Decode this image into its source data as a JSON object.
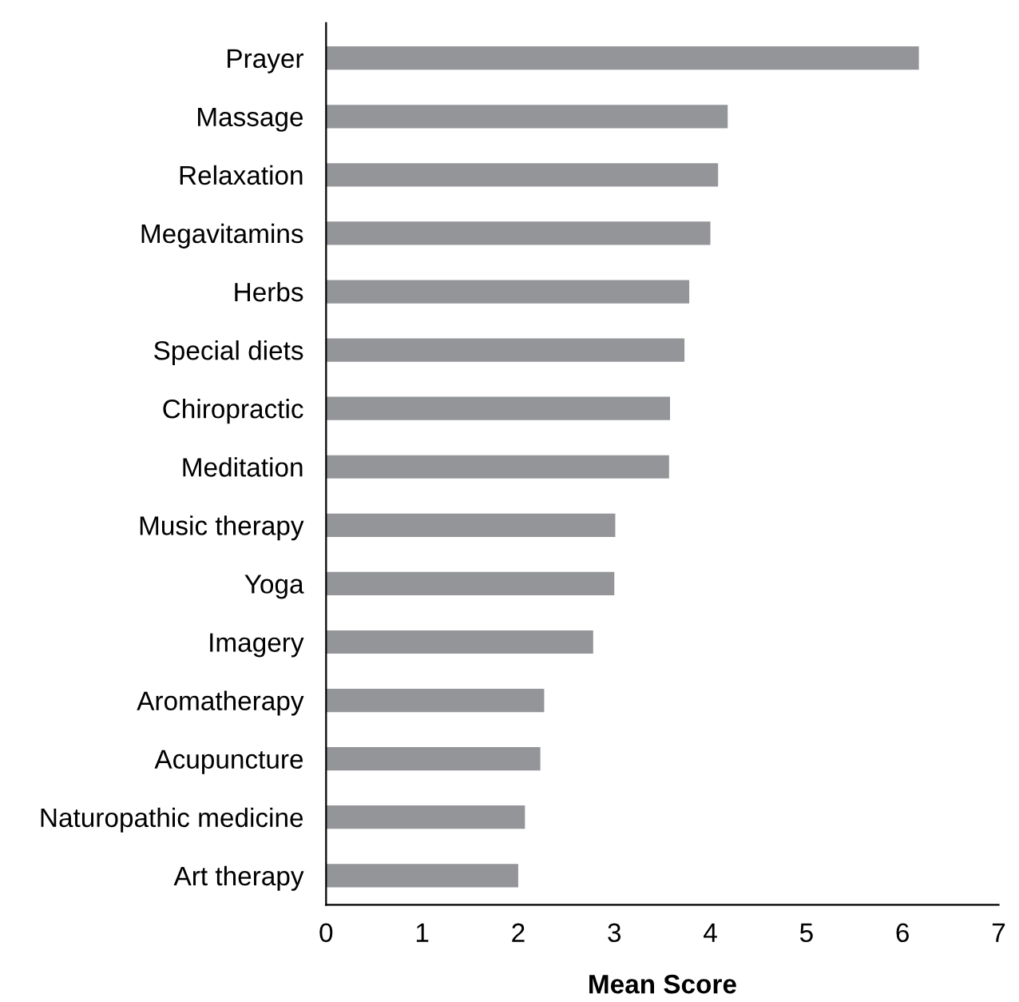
{
  "chart_data": {
    "type": "bar",
    "orientation": "horizontal",
    "xlabel": "Mean Score",
    "categories": [
      "Prayer",
      "Massage",
      "Relaxation",
      "Megavitamins",
      "Herbs",
      "Special diets",
      "Chiropractic",
      "Meditation",
      "Music therapy",
      "Yoga",
      "Imagery",
      "Aromatherapy",
      "Acupuncture",
      "Naturopathic medicine",
      "Art therapy"
    ],
    "values": [
      6.17,
      4.18,
      4.08,
      4.0,
      3.78,
      3.73,
      3.58,
      3.57,
      3.01,
      3.0,
      2.78,
      2.27,
      2.23,
      2.07,
      2.0
    ],
    "color": "#939598",
    "xlim": [
      0,
      7
    ],
    "xticks": [
      0,
      1,
      2,
      3,
      4,
      5,
      6,
      7
    ],
    "grid": false,
    "legend": false
  }
}
